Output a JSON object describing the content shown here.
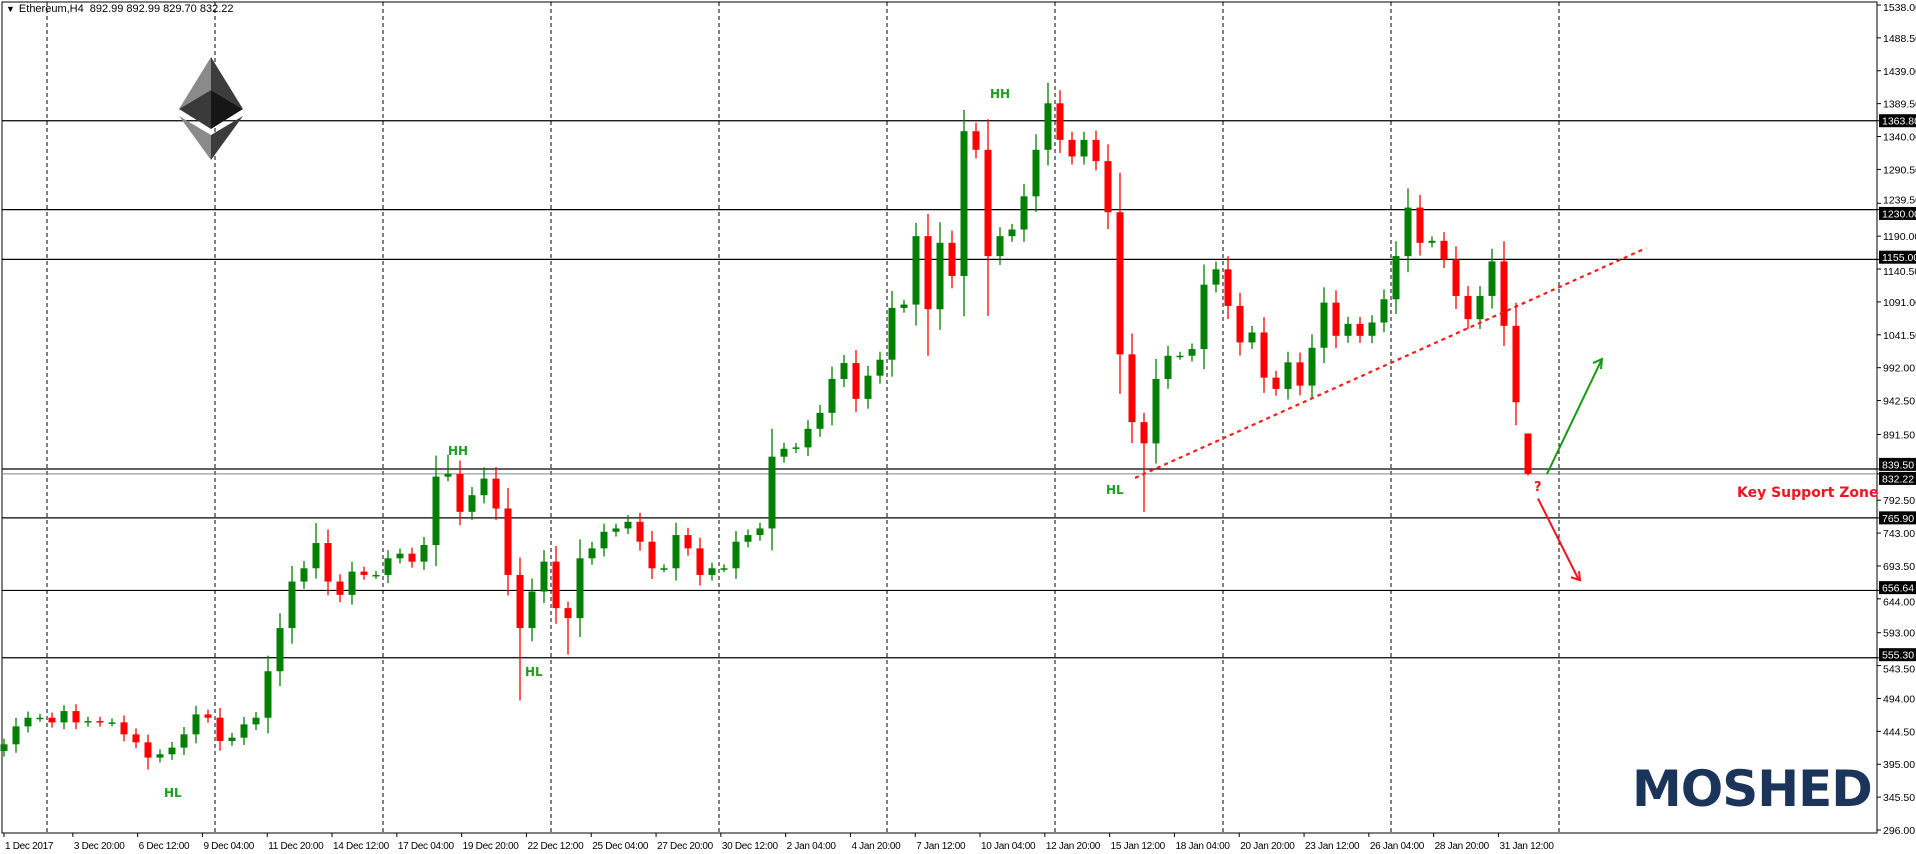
{
  "header": {
    "symbol": "Ethereum,H4",
    "ohlc_text": "892.99 892.99 829.70 832.22"
  },
  "annotations": {
    "hh1": "HH",
    "hh2": "HH",
    "hl1": "HL",
    "hl2": "HL",
    "hl3": "HL",
    "question": "?",
    "support_zone": "Key Support Zone",
    "logo_text": "MOSHED"
  },
  "colors": {
    "bull": "#008000",
    "bear": "#ff0000",
    "annotation_green": "#1e9e1e",
    "annotation_red": "#f0141e",
    "logo": "#1b355a",
    "bid_line": "#778899"
  },
  "chart_data": {
    "type": "candlestick",
    "symbol": "Ethereum",
    "timeframe": "H4",
    "last_bar": {
      "open": 892.99,
      "high": 892.99,
      "low": 829.7,
      "close": 832.22
    },
    "ylim": [
      296.0,
      1538.0
    ],
    "y_ticks": [
      "1538.00",
      "1488.50",
      "1439.00",
      "1389.50",
      "1340.00",
      "1290.50",
      "1239.50",
      "1190.00",
      "1140.50",
      "1091.00",
      "1041.50",
      "992.00",
      "942.50",
      "891.50",
      "792.50",
      "743.00",
      "693.50",
      "644.00",
      "593.00",
      "543.50",
      "494.00",
      "444.50",
      "395.00",
      "345.50",
      "296.00"
    ],
    "x_ticks": [
      "1 Dec 2017",
      "3 Dec 20:00",
      "6 Dec 12:00",
      "9 Dec 04:00",
      "11 Dec 20:00",
      "14 Dec 12:00",
      "17 Dec 04:00",
      "19 Dec 20:00",
      "22 Dec 12:00",
      "25 Dec 04:00",
      "27 Dec 20:00",
      "30 Dec 12:00",
      "2 Jan 04:00",
      "4 Jan 20:00",
      "7 Jan 12:00",
      "10 Jan 04:00",
      "12 Jan 20:00",
      "15 Jan 12:00",
      "18 Jan 04:00",
      "20 Jan 20:00",
      "23 Jan 12:00",
      "26 Jan 04:00",
      "28 Jan 20:00",
      "31 Jan 12:00"
    ],
    "grid": "vertical dashed",
    "first_open": 415,
    "closes": [
      425,
      452,
      465,
      465,
      458,
      475,
      458,
      460,
      458,
      458,
      440,
      428,
      405,
      410,
      420,
      440,
      470,
      465,
      430,
      435,
      455,
      465,
      535,
      600,
      670,
      690,
      728,
      670,
      650,
      685,
      680,
      680,
      705,
      712,
      700,
      725,
      828,
      832,
      775,
      800,
      825,
      780,
      680,
      600,
      655,
      700,
      630,
      615,
      705,
      720,
      745,
      750,
      760,
      730,
      690,
      690,
      740,
      720,
      680,
      690,
      690,
      730,
      740,
      750,
      858,
      870,
      872,
      900,
      924,
      975,
      999,
      945,
      980,
      1004,
      1082,
      1087,
      1190,
      1080,
      1180,
      1130,
      1348,
      1320,
      1160,
      1190,
      1200,
      1250,
      1320,
      1390,
      1335,
      1310,
      1335,
      1303,
      1226,
      1012,
      910,
      878,
      975,
      1010,
      1010,
      1020,
      1117,
      1140,
      1085,
      1030,
      1045,
      977,
      960,
      1000,
      965,
      1022,
      1090,
      1040,
      1058,
      1040,
      1060,
      1095,
      1160,
      1233,
      1180,
      1183,
      1155,
      1100,
      1065,
      1100,
      1152,
      1055,
      940,
      832.22
    ],
    "wick_extremes": [
      {
        "index": 5,
        "high": 484
      },
      {
        "index": 12,
        "low": 387
      },
      {
        "index": 16,
        "high": 483
      },
      {
        "index": 26,
        "high": 758
      },
      {
        "index": 37,
        "high": 861
      },
      {
        "index": 40,
        "high": 842
      },
      {
        "index": 43,
        "low": 491
      },
      {
        "index": 47,
        "low": 560
      },
      {
        "index": 52,
        "high": 770
      },
      {
        "index": 64,
        "high": 900
      },
      {
        "index": 76,
        "high": 1210
      },
      {
        "index": 77,
        "low": 1010
      },
      {
        "index": 80,
        "high": 1380
      },
      {
        "index": 82,
        "low": 1070
      },
      {
        "index": 87,
        "high": 1421
      },
      {
        "index": 95,
        "low": 775
      },
      {
        "index": 117,
        "high": 1262
      },
      {
        "index": 127,
        "high": 892.99,
        "low": 829.7
      }
    ],
    "horizontal_levels": [
      1363.8,
      1230.0,
      1155.0,
      839.5,
      765.9,
      656.64,
      555.3
    ],
    "bid_line": 832.22,
    "trendline": {
      "style": "red dotted",
      "from": {
        "index": 95,
        "price": 826
      },
      "to": {
        "index": 137,
        "price": 1172
      }
    },
    "arrows": [
      {
        "color": "green",
        "from_price": 832,
        "to_price": 1005,
        "direction": "up"
      },
      {
        "color": "red",
        "from_price": 795,
        "to_price": 672,
        "direction": "down"
      }
    ]
  }
}
